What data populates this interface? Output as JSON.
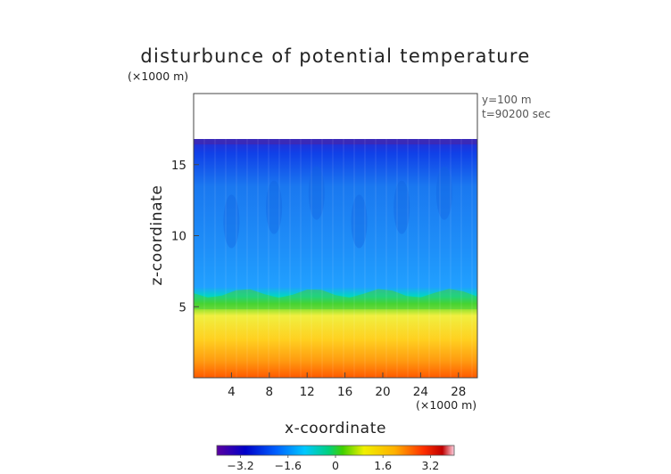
{
  "chart_data": {
    "type": "heatmap",
    "title": "disturbunce of potential temperature",
    "xlabel": "x-coordinate",
    "ylabel": "z-coordinate",
    "x_unit": "(×1000 m)",
    "y_unit": "(×1000 m)",
    "xlim": [
      0,
      30
    ],
    "ylim": [
      0,
      20
    ],
    "x_ticks": [
      "4",
      "8",
      "12",
      "16",
      "20",
      "24",
      "28"
    ],
    "x_tick_values": [
      4,
      8,
      12,
      16,
      20,
      24,
      28
    ],
    "y_ticks": [
      "5",
      "10",
      "15"
    ],
    "y_tick_values": [
      5,
      10,
      15
    ],
    "annotations": [
      "y=100 m",
      "t=90200 sec"
    ],
    "colorbar": {
      "range": [
        -4,
        4
      ],
      "ticks": [
        "−3.2",
        "−1.6",
        "0",
        "1.6",
        "3.2"
      ],
      "tick_values": [
        -3.2,
        -1.6,
        0,
        1.6,
        3.2
      ]
    },
    "field_description_levels": {
      "top_of_data_km": 16.8,
      "inversion_km": 6.2
    }
  }
}
